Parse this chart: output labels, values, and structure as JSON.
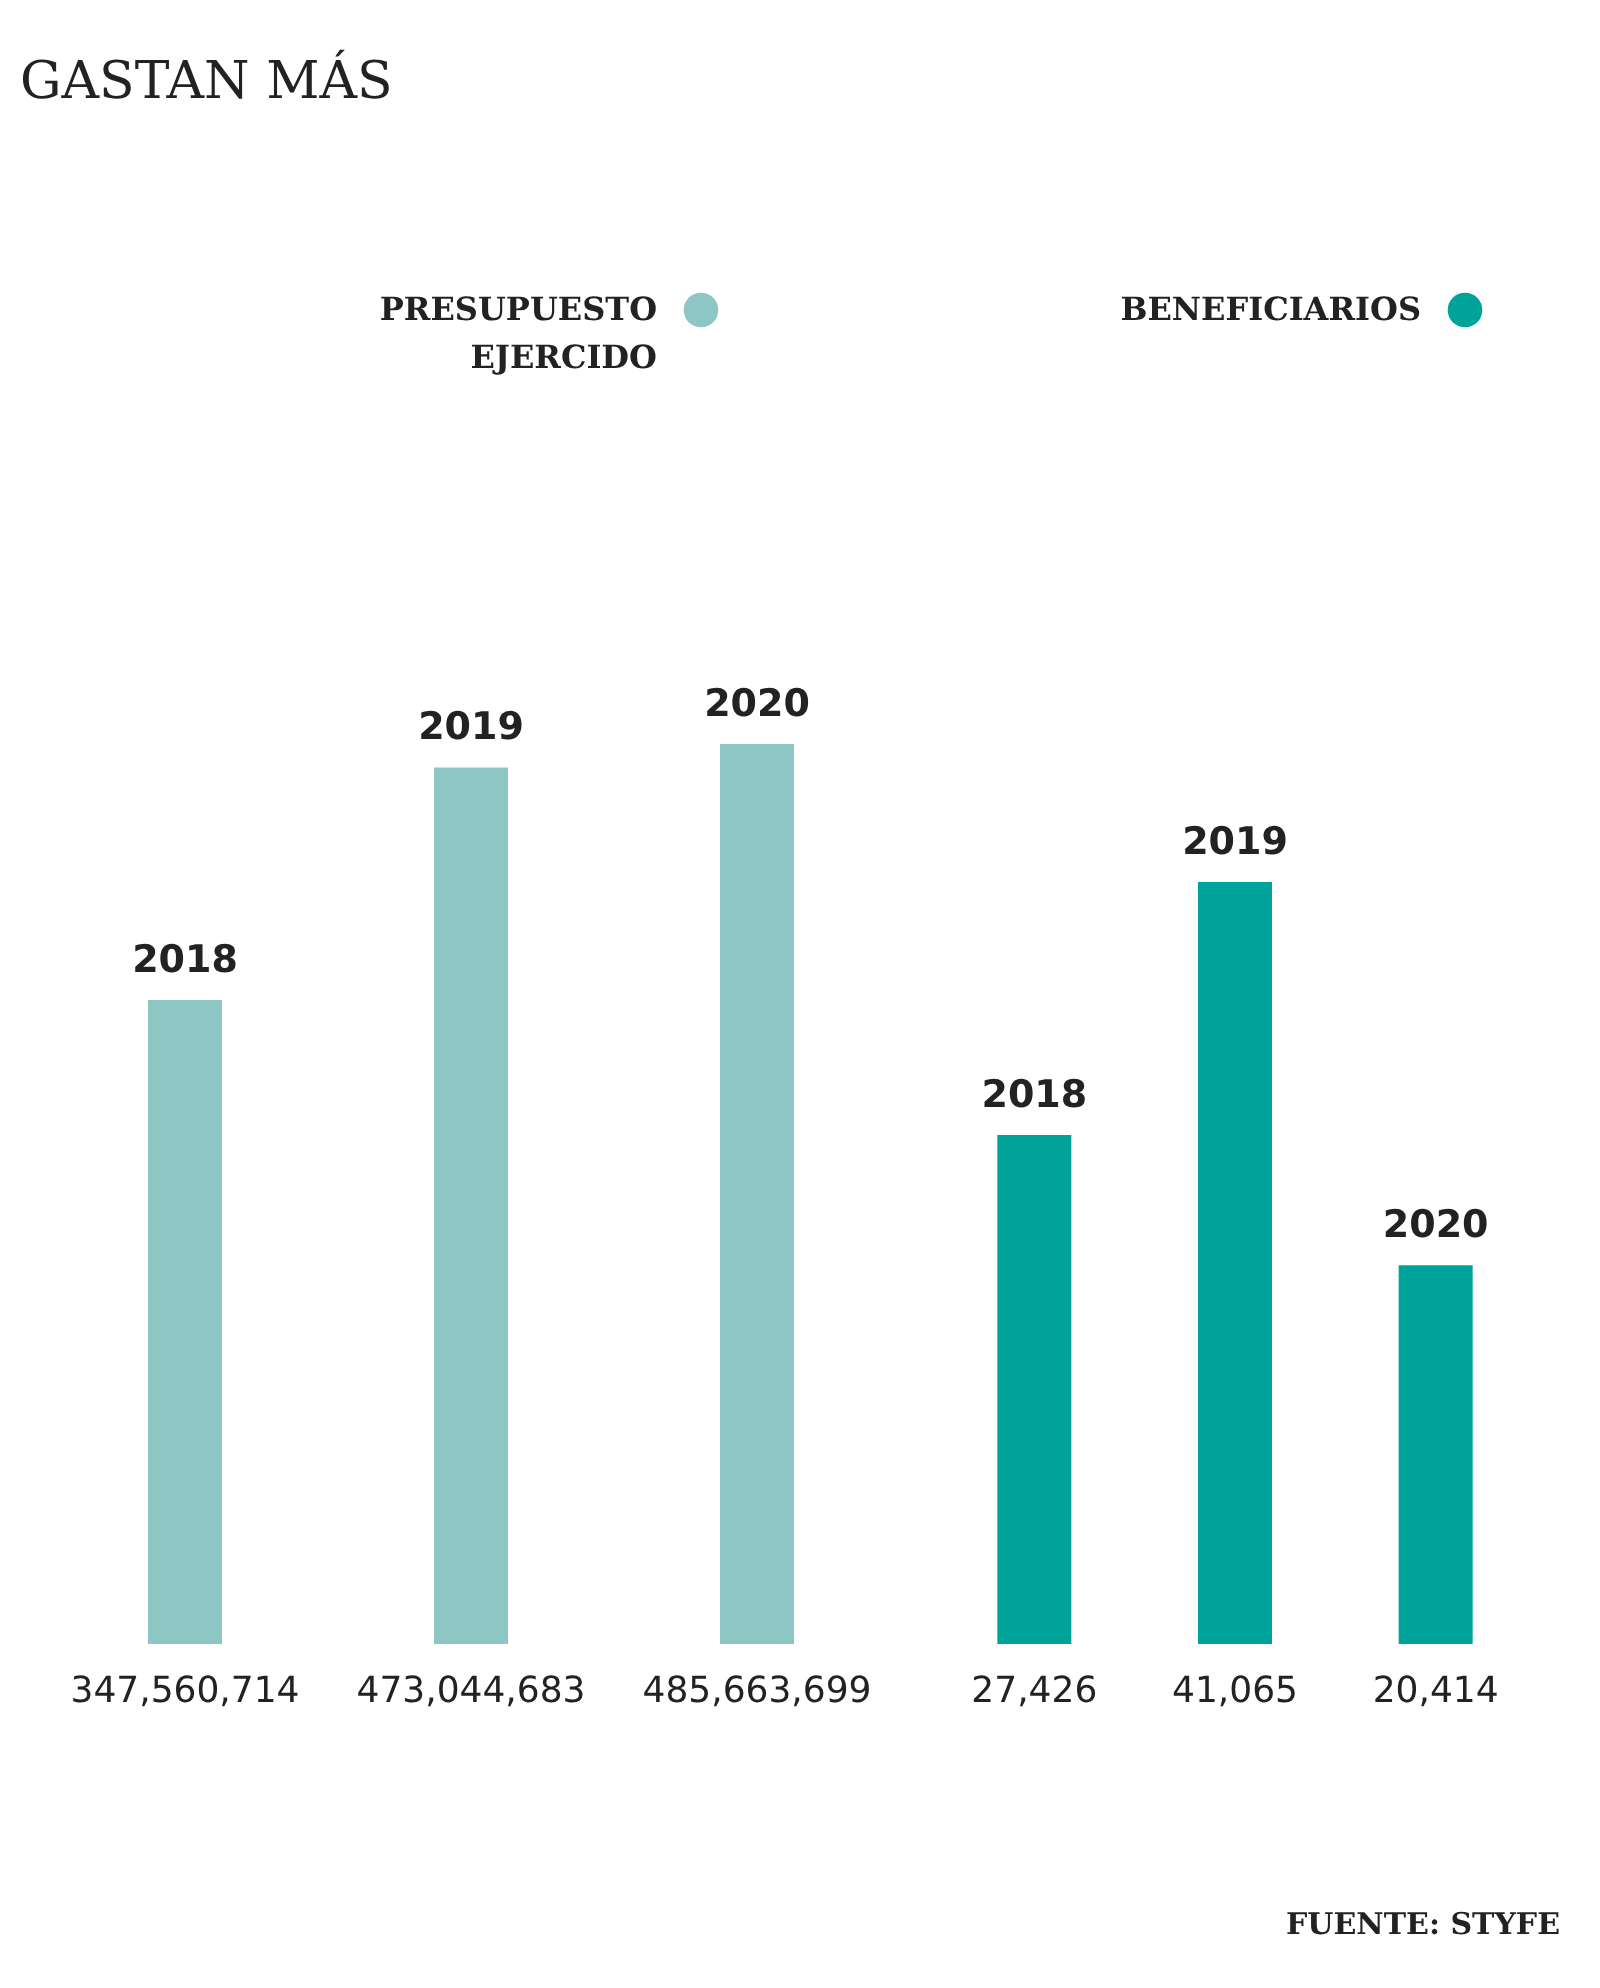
{
  "chart_data": [
    {
      "type": "bar",
      "title": "GASTAN MÁS",
      "categories": [
        "2018",
        "2019",
        "2020"
      ],
      "series": [
        {
          "name": "PRESUPUESTO EJERCIDO",
          "color": "#8dc6c3",
          "values": [
            347560714,
            473044683,
            485663699
          ],
          "value_labels": [
            "347,560,714",
            "473,044,683",
            "485,663,699"
          ]
        }
      ],
      "legend": "top",
      "tick_labels": "x"
    },
    {
      "type": "bar",
      "categories": [
        "2018",
        "2019",
        "2020"
      ],
      "series": [
        {
          "name": "BENEFICIARIOS",
          "color": "#00a39a",
          "values": [
            27426,
            41065,
            20414
          ],
          "value_labels": [
            "27,426",
            "41,065",
            "20,414"
          ]
        }
      ],
      "legend": "top",
      "tick_labels": "x",
      "annotations": [
        "FUENTE: STYFE"
      ]
    }
  ]
}
